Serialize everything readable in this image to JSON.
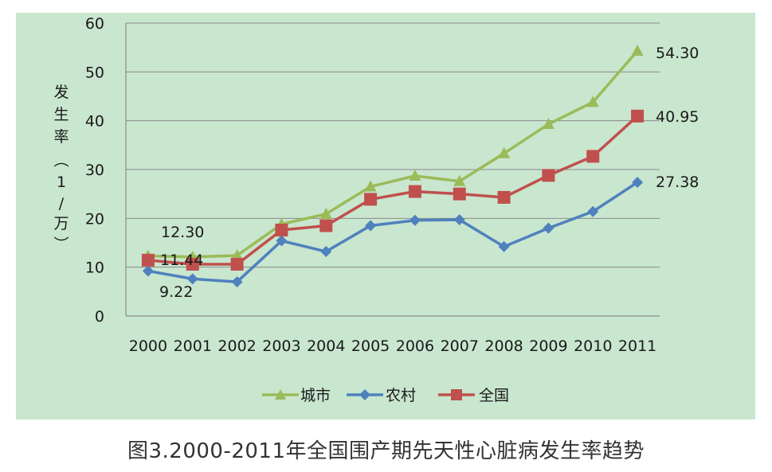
{
  "caption": "图3.2000-2011年全国围产期先天性心脏病发生率趋势",
  "chart_data": {
    "type": "line",
    "categories": [
      "2000",
      "2001",
      "2002",
      "2003",
      "2004",
      "2005",
      "2006",
      "2007",
      "2008",
      "2009",
      "2010",
      "2011"
    ],
    "ylabel_chars": [
      "发",
      "生",
      "率",
      "（",
      "1",
      "/",
      "万",
      "）"
    ],
    "ylim": [
      0,
      60
    ],
    "yticks": [
      0,
      10,
      20,
      30,
      40,
      50,
      60
    ],
    "grid": true,
    "legend_position": "bottom",
    "series": [
      {
        "name": "城市",
        "color": "#9bbb59",
        "marker": "triangle",
        "values": [
          12.3,
          12.1,
          12.4,
          18.8,
          20.9,
          26.5,
          28.7,
          27.6,
          33.3,
          39.3,
          43.8,
          54.3
        ]
      },
      {
        "name": "农村",
        "color": "#4f81bd",
        "marker": "diamond",
        "values": [
          9.22,
          7.6,
          7.0,
          15.4,
          13.2,
          18.5,
          19.6,
          19.7,
          14.2,
          18.0,
          21.4,
          27.38
        ]
      },
      {
        "name": "全国",
        "color": "#c0504d",
        "marker": "square",
        "values": [
          11.44,
          10.6,
          10.6,
          17.6,
          18.5,
          23.9,
          25.5,
          25.0,
          24.3,
          28.8,
          32.7,
          40.95
        ]
      }
    ],
    "data_labels": [
      "12.30",
      "11.44",
      "9.22",
      "54.30",
      "40.95",
      "27.38"
    ]
  }
}
